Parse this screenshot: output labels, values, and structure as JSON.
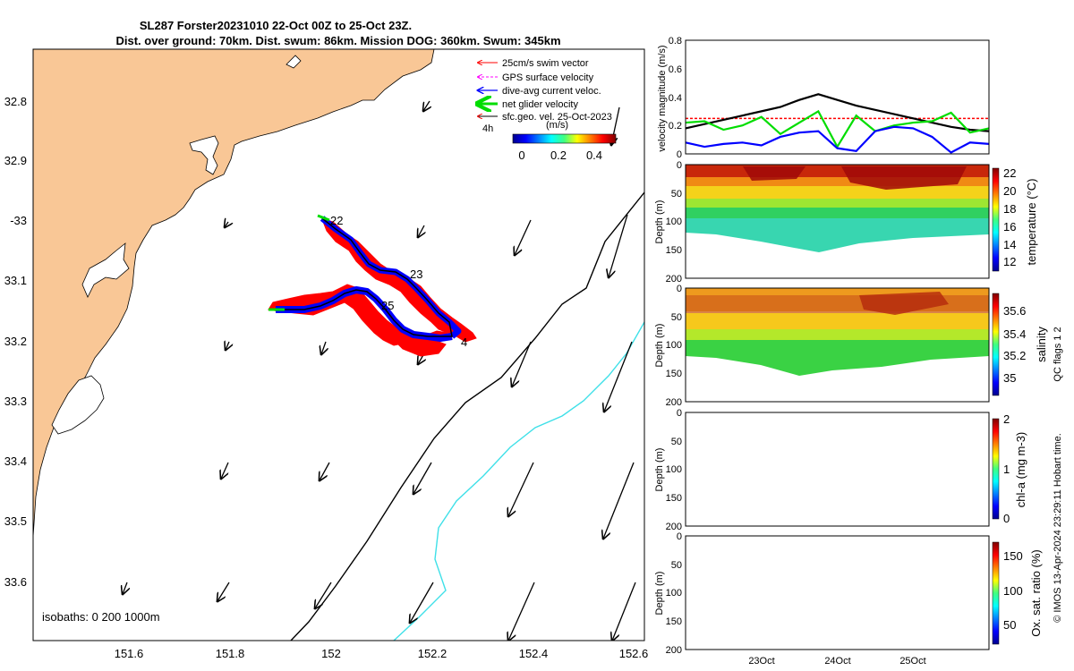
{
  "title": {
    "line1": "SL287 Forster20231010 22-Oct 00Z to 25-Oct 23Z.",
    "line2": "Dist. over ground: 70km. Dist. swum: 86km. Mission DOG: 360km. Swum: 345km"
  },
  "map": {
    "lon_ticks": [
      "151.6",
      "151.8",
      "152",
      "152.2",
      "152.4",
      "152.6"
    ],
    "lat_ticks": [
      "32.8",
      "32.9",
      "-33",
      "33.1",
      "33.2",
      "33.3",
      "33.4",
      "33.5",
      "33.6"
    ],
    "legend": [
      {
        "label": "25cm/s swim vector",
        "color": "#ff0000"
      },
      {
        "label": "GPS surface velocity",
        "color": "#ff00ff"
      },
      {
        "label": "dive-avg current veloc.",
        "color": "#0000ff"
      },
      {
        "label": "net glider velocity",
        "color": "#00dd00"
      },
      {
        "label": "sfc.geo. vel. 25-Oct-2023",
        "color": "#000000"
      }
    ],
    "colorbar": {
      "label_left": "4h",
      "unit": "(m/s)",
      "ticks": [
        "0",
        "0.2",
        "0.4"
      ]
    },
    "isobath_label": "isobaths: 0   200  1000m",
    "day_labels": [
      "22",
      "23",
      "25",
      "4"
    ],
    "colors": {
      "land": "#f9c796",
      "isobath_200": "#000000",
      "isobath_1000": "#3fe0e8",
      "track_blue": "#0000ff",
      "swim_red": "#ff0000",
      "net_green": "#00dd00"
    }
  },
  "chart_data": [
    {
      "type": "line",
      "ylabel": "velocity magnitude (m/s)",
      "ylim": [
        0,
        0.8
      ],
      "yticks": [
        "0",
        "0.2",
        "0.4",
        "0.6",
        "0.8"
      ],
      "x_ticks": [
        "23Oct",
        "24Oct",
        "25Oct"
      ],
      "x": [
        22.0,
        22.25,
        22.5,
        22.75,
        23.0,
        23.25,
        23.5,
        23.75,
        24.0,
        24.25,
        24.5,
        24.75,
        25.0,
        25.25,
        25.5,
        25.75,
        26.0
      ],
      "series": [
        {
          "color": "#ff0000",
          "style": "dashed",
          "values": [
            0.25,
            0.25,
            0.25,
            0.25,
            0.25,
            0.25,
            0.25,
            0.25,
            0.25,
            0.25,
            0.25,
            0.25,
            0.25,
            0.25,
            0.25,
            0.25,
            0.25
          ]
        },
        {
          "color": "#000000",
          "values": [
            0.18,
            0.21,
            0.24,
            0.27,
            0.3,
            0.33,
            0.38,
            0.42,
            0.38,
            0.34,
            0.31,
            0.28,
            0.25,
            0.22,
            0.19,
            0.17,
            0.16
          ]
        },
        {
          "color": "#00dd00",
          "values": [
            0.22,
            0.23,
            0.17,
            0.2,
            0.26,
            0.14,
            0.22,
            0.3,
            0.05,
            0.27,
            0.16,
            0.2,
            0.22,
            0.23,
            0.29,
            0.15,
            0.18
          ]
        },
        {
          "color": "#0000ff",
          "values": [
            0.08,
            0.05,
            0.07,
            0.08,
            0.06,
            0.12,
            0.15,
            0.16,
            0.04,
            0.02,
            0.16,
            0.19,
            0.18,
            0.12,
            0.01,
            0.08,
            0.07
          ]
        }
      ]
    },
    {
      "type": "heatmap",
      "ylabel": "Depth (m)",
      "ylim": [
        0,
        200
      ],
      "yticks": [
        "0",
        "50",
        "100",
        "150",
        "200"
      ],
      "colorbar_label": "temperature (°C)",
      "colorbar_ticks": [
        "22",
        "20",
        "18",
        "16",
        "14",
        "12"
      ],
      "colorbar_range": [
        11,
        22.5
      ],
      "values_by_depth": [
        {
          "depth": 10,
          "value": 21.0
        },
        {
          "depth": 35,
          "value": 19.5
        },
        {
          "depth": 60,
          "value": 18.3
        },
        {
          "depth": 85,
          "value": 17.2
        },
        {
          "depth": 110,
          "value": 16.5
        },
        {
          "depth": 135,
          "value": 16.0
        }
      ]
    },
    {
      "type": "heatmap",
      "ylabel": "Depth (m)",
      "ylim": [
        0,
        200
      ],
      "yticks": [
        "0",
        "50",
        "100",
        "150",
        "200"
      ],
      "colorbar_label": "salinity",
      "colorbar_ticks": [
        "35.6",
        "35.4",
        "35.2",
        "35"
      ],
      "colorbar_range": [
        34.85,
        35.7
      ],
      "values_by_depth": [
        {
          "depth": 10,
          "value": 35.55
        },
        {
          "depth": 35,
          "value": 35.6
        },
        {
          "depth": 60,
          "value": 35.5
        },
        {
          "depth": 85,
          "value": 35.4
        },
        {
          "depth": 110,
          "value": 35.25
        },
        {
          "depth": 135,
          "value": 35.2
        }
      ]
    },
    {
      "type": "heatmap",
      "ylabel": "Depth (m)",
      "ylim": [
        0,
        200
      ],
      "yticks": [
        "0",
        "50",
        "100",
        "150",
        "200"
      ],
      "colorbar_label": "chl-a (mg m-3)",
      "colorbar_ticks": [
        "2",
        "1",
        "0"
      ],
      "colorbar_range": [
        0,
        2
      ]
    },
    {
      "type": "heatmap",
      "ylabel": "Depth (m)",
      "ylim": [
        0,
        200
      ],
      "yticks": [
        "0",
        "50",
        "100",
        "150",
        "200"
      ],
      "colorbar_label": "Ox. sat. ratio (%)",
      "colorbar_ticks": [
        "150",
        "100",
        "50"
      ],
      "colorbar_range": [
        20,
        175
      ]
    }
  ],
  "side_label": "QC flags 1  2",
  "footer": "© IMOS 13-Apr-2024 23:29:11 Hobart time."
}
